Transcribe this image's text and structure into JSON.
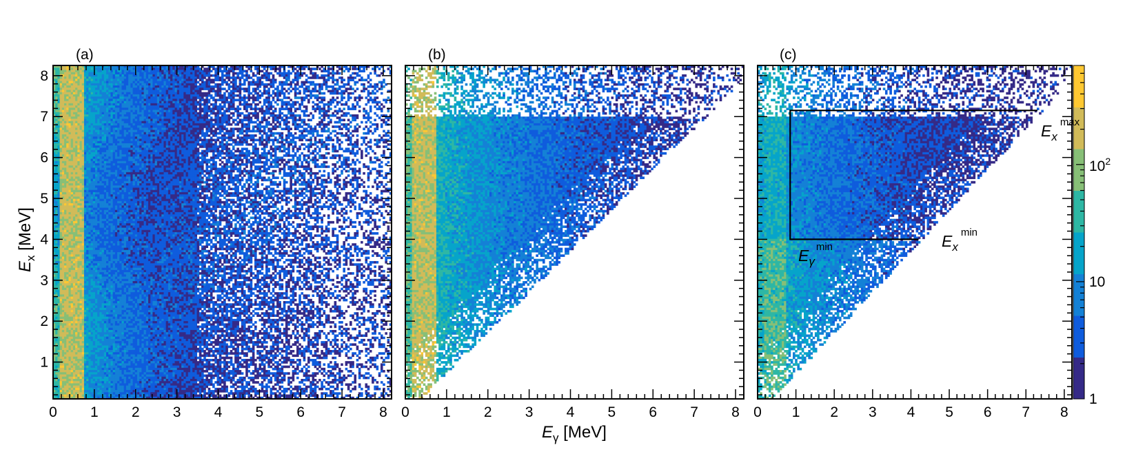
{
  "chart_data": {
    "type": "heatmap",
    "description_scale": "log",
    "shared_xlabel": "E_γ [MeV]",
    "shared_ylabel": "E_x [MeV]",
    "x_axis": {
      "range": [
        0,
        8.2
      ],
      "ticks": [
        0,
        1,
        2,
        3,
        4,
        5,
        6,
        7,
        8
      ]
    },
    "y_axis": {
      "range": [
        0.1,
        8.25
      ],
      "ticks": [
        1,
        2,
        3,
        4,
        5,
        6,
        7,
        8
      ]
    },
    "colorbar": {
      "range": [
        1,
        700
      ],
      "scale": "log",
      "tick_labels": [
        "1",
        "10",
        "10²"
      ],
      "tick_values": [
        1,
        10,
        100
      ]
    },
    "panels": [
      {
        "label": "(a)",
        "content": "full matrix incl. background; intense band at E_γ≈0.2–0.7 MeV"
      },
      {
        "label": "(b)",
        "content": "background-subtracted, restricted to E_γ ≤ E_x + 0.3 MeV"
      },
      {
        "label": "(c)",
        "content": "first-generation matrix with extraction region",
        "region": {
          "Eg_min": 0.85,
          "Ex_min": 4.0,
          "Ex_max": 7.15,
          "Eg_at_Ex_min_edge": 4.2,
          "Eg_at_Ex_max_edge": 7.3
        },
        "annotations": {
          "ex_max": "max",
          "ex_min": "min",
          "eg_min": "min"
        }
      }
    ]
  },
  "labels": {
    "panel_a": "(a)",
    "panel_b": "(b)",
    "panel_c": "(c)",
    "x_title_main": "E",
    "x_title_sub": "γ",
    "x_title_unit": " [MeV]",
    "y_title_main": "E",
    "y_title_sub": "x",
    "y_title_unit": " [MeV]",
    "ann_ex": "E",
    "ann_x": "x",
    "ann_g": "γ",
    "ann_max": "max",
    "ann_min": "min",
    "cb_1": "1",
    "cb_10": "10",
    "cb_100_base": "10",
    "cb_100_exp": "2"
  },
  "colors": {
    "scale": [
      "#352a87",
      "#0f5cdd",
      "#1481d6",
      "#06a4ca",
      "#2eb7a4",
      "#87bf77",
      "#d1bb59",
      "#fec832",
      "#f9fb0e"
    ]
  }
}
